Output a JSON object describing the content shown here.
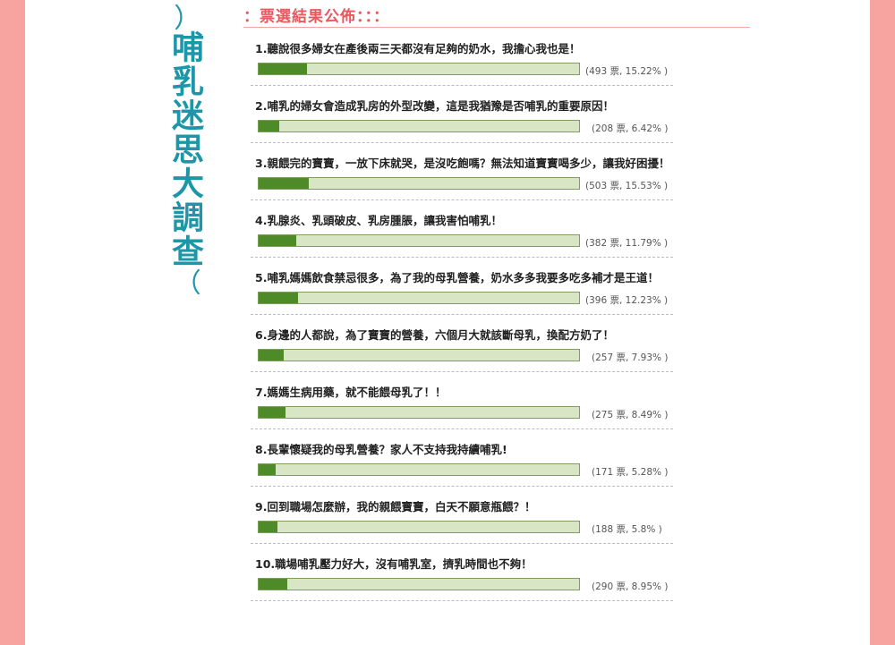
{
  "side_title": {
    "open_brace": "︵",
    "text": "哺乳迷思大調查",
    "close_brace": "︶"
  },
  "header": {
    "title": "：票選結果公佈：：："
  },
  "colors": {
    "accent_title": "#1d96a8",
    "header_red": "#e8585e",
    "bar_fill": "#4f8a28",
    "bar_bg": "#d8e6c5",
    "border_pink": "#f7a39f"
  },
  "items": [
    {
      "question": "1.聽說很多婦女在產後兩三天都沒有足夠的奶水，我擔心我也是！",
      "count_text": "(493 票, 15.22% )",
      "percent": 15.22
    },
    {
      "question": "2.哺乳的婦女會造成乳房的外型改變，這是我猶豫是否哺乳的重要原因！",
      "count_text": "(208 票, 6.42% )",
      "percent": 6.42
    },
    {
      "question": "3.親餵完的寶寶，一放下床就哭，是沒吃飽嗎？無法知道寶寶喝多少，讓我好困擾！",
      "count_text": "(503 票, 15.53% )",
      "percent": 15.53
    },
    {
      "question": "4.乳腺炎、乳頭破皮、乳房腫脹，讓我害怕哺乳！",
      "count_text": "(382 票, 11.79% )",
      "percent": 11.79
    },
    {
      "question": "5.哺乳媽媽飲食禁忌很多，為了我的母乳營養，奶水多多我要多吃多補才是王道！",
      "count_text": "(396 票, 12.23% )",
      "percent": 12.23
    },
    {
      "question": "6.身邊的人都說，為了寶寶的營養，六個月大就該斷母乳，換配方奶了！",
      "count_text": "(257 票, 7.93% )",
      "percent": 7.93
    },
    {
      "question": "7.媽媽生病用藥，就不能餵母乳了！！",
      "count_text": "(275 票, 8.49% )",
      "percent": 8.49
    },
    {
      "question": "8.長輩懷疑我的母乳營養？家人不支持我持續哺乳!",
      "count_text": "(171 票, 5.28% )",
      "percent": 5.28
    },
    {
      "question": "9.回到職場怎麼辦，我的親餵寶寶，白天不願意瓶餵？！",
      "count_text": "(188 票, 5.8% )",
      "percent": 5.8
    },
    {
      "question": "10.職場哺乳壓力好大，沒有哺乳室，擠乳時間也不夠！",
      "count_text": "(290 票, 8.95% )",
      "percent": 8.95
    }
  ]
}
